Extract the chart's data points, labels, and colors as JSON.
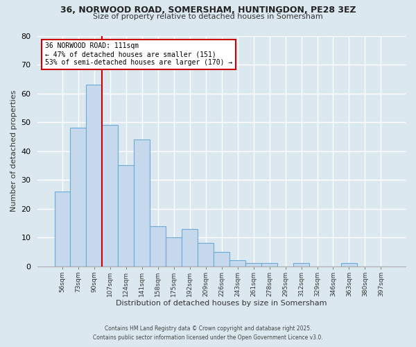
{
  "title_line1": "36, NORWOOD ROAD, SOMERSHAM, HUNTINGDON, PE28 3EZ",
  "title_line2": "Size of property relative to detached houses in Somersham",
  "bar_labels": [
    "56sqm",
    "73sqm",
    "90sqm",
    "107sqm",
    "124sqm",
    "141sqm",
    "158sqm",
    "175sqm",
    "192sqm",
    "209sqm",
    "226sqm",
    "243sqm",
    "261sqm",
    "278sqm",
    "295sqm",
    "312sqm",
    "329sqm",
    "346sqm",
    "363sqm",
    "380sqm",
    "397sqm"
  ],
  "bar_values": [
    26,
    48,
    63,
    49,
    35,
    44,
    14,
    10,
    13,
    8,
    5,
    2,
    1,
    1,
    0,
    1,
    0,
    0,
    1,
    0,
    0
  ],
  "bar_color": "#c6d9ec",
  "bar_edge_color": "#6aaad4",
  "vline_x_idx": 3,
  "vline_color": "#cc0000",
  "ylabel": "Number of detached properties",
  "xlabel": "Distribution of detached houses by size in Somersham",
  "ylim": [
    0,
    80
  ],
  "yticks": [
    0,
    10,
    20,
    30,
    40,
    50,
    60,
    70,
    80
  ],
  "annotation_title": "36 NORWOOD ROAD: 111sqm",
  "annotation_line2": "← 47% of detached houses are smaller (151)",
  "annotation_line3": "53% of semi-detached houses are larger (170) →",
  "annotation_box_color": "#ffffff",
  "annotation_box_edge": "#cc0000",
  "footnote1": "Contains HM Land Registry data © Crown copyright and database right 2025.",
  "footnote2": "Contains public sector information licensed under the Open Government Licence v3.0.",
  "bg_color": "#dce8f0",
  "plot_bg_color": "#dce8f0",
  "grid_color": "#ffffff"
}
